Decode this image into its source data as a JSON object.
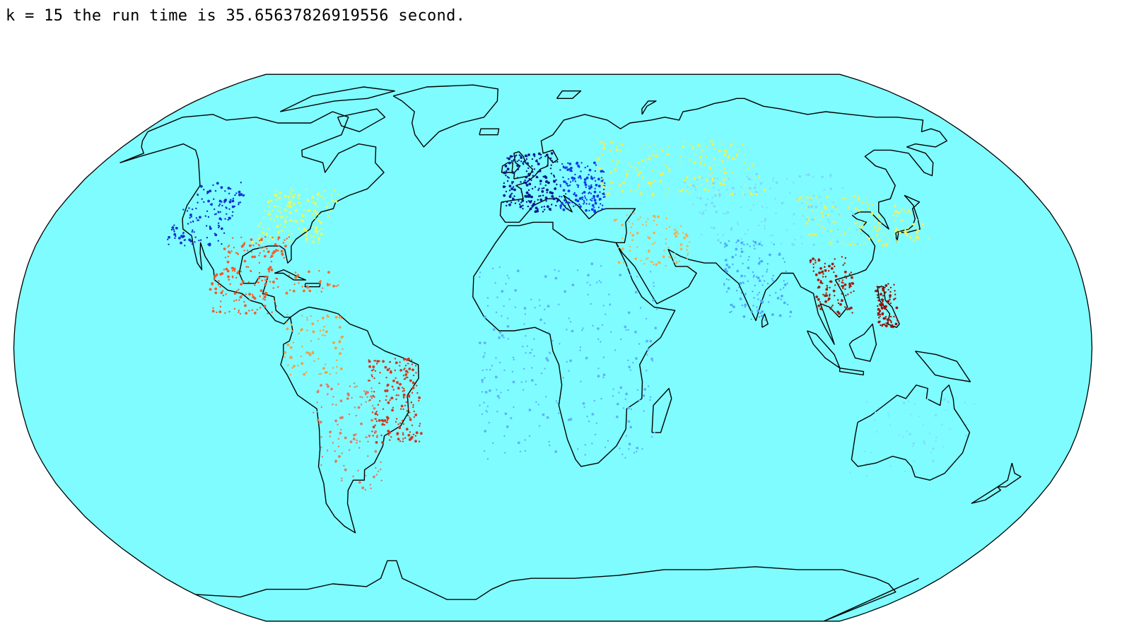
{
  "output": {
    "text": "k = 15 the run time is 35.65637826919556 second."
  },
  "map": {
    "projection": "robinson",
    "ocean_color": "#7ffcff",
    "coast_color": "#000000",
    "cluster_count": 15,
    "clusters": [
      {
        "region": "western-us",
        "color": "#1030d0",
        "lon": [
          -125,
          -105
        ],
        "lat": [
          30,
          49
        ],
        "n": 140
      },
      {
        "region": "eastern-us",
        "color": "#e8fb58",
        "lon": [
          -95,
          -70
        ],
        "lat": [
          31,
          47
        ],
        "n": 160
      },
      {
        "region": "gulf-texas",
        "color": "#f06030",
        "lon": [
          -104,
          -82
        ],
        "lat": [
          25,
          33
        ],
        "n": 70
      },
      {
        "region": "mexico-central-america",
        "color": "#f05a28",
        "lon": [
          -106,
          -83
        ],
        "lat": [
          10,
          24
        ],
        "n": 120
      },
      {
        "region": "caribbean",
        "color": "#f07030",
        "lon": [
          -80,
          -62
        ],
        "lat": [
          16,
          23
        ],
        "n": 30
      },
      {
        "region": "northern-south-america",
        "color": "#f0a040",
        "lon": [
          -80,
          -60
        ],
        "lat": [
          -8,
          10
        ],
        "n": 80
      },
      {
        "region": "brazil",
        "color": "#d03820",
        "lon": [
          -52,
          -35
        ],
        "lat": [
          -28,
          -3
        ],
        "n": 200
      },
      {
        "region": "south-america-interior",
        "color": "#e07a60",
        "lon": [
          -72,
          -50
        ],
        "lat": [
          -42,
          -10
        ],
        "n": 110
      },
      {
        "region": "western-europe",
        "color": "#001a90",
        "lon": [
          -9,
          12
        ],
        "lat": [
          40,
          58
        ],
        "n": 200
      },
      {
        "region": "central-europe",
        "color": "#0c3ce8",
        "lon": [
          12,
          30
        ],
        "lat": [
          40,
          55
        ],
        "n": 160
      },
      {
        "region": "russia-ukraine",
        "color": "#eef055",
        "lon": [
          28,
          90
        ],
        "lat": [
          45,
          62
        ],
        "n": 190
      },
      {
        "region": "middle-east",
        "color": "#f0b050",
        "lon": [
          32,
          58
        ],
        "lat": [
          24,
          40
        ],
        "n": 90
      },
      {
        "region": "africa",
        "color": "#60b0ff",
        "lon": [
          -15,
          45
        ],
        "lat": [
          -33,
          25
        ],
        "n": 260
      },
      {
        "region": "india",
        "color": "#50a8ff",
        "lon": [
          68,
          90
        ],
        "lat": [
          8,
          32
        ],
        "n": 130
      },
      {
        "region": "china-east",
        "color": "#e0f070",
        "lon": [
          100,
          128
        ],
        "lat": [
          30,
          45
        ],
        "n": 120
      },
      {
        "region": "southeast-asia",
        "color": "#a02010",
        "lon": [
          98,
          112
        ],
        "lat": [
          10,
          27
        ],
        "n": 110
      },
      {
        "region": "philippines",
        "color": "#a01008",
        "lon": [
          119,
          126
        ],
        "lat": [
          6,
          19
        ],
        "n": 90
      },
      {
        "region": "japan",
        "color": "#e8f070",
        "lon": [
          130,
          142
        ],
        "lat": [
          31,
          42
        ],
        "n": 50
      },
      {
        "region": "central-asia",
        "color": "#80d8ff",
        "lon": [
          60,
          120
        ],
        "lat": [
          30,
          52
        ],
        "n": 140
      },
      {
        "region": "australia",
        "color": "#80e0ff",
        "lon": [
          115,
          153
        ],
        "lat": [
          -38,
          -15
        ],
        "n": 50
      }
    ]
  }
}
